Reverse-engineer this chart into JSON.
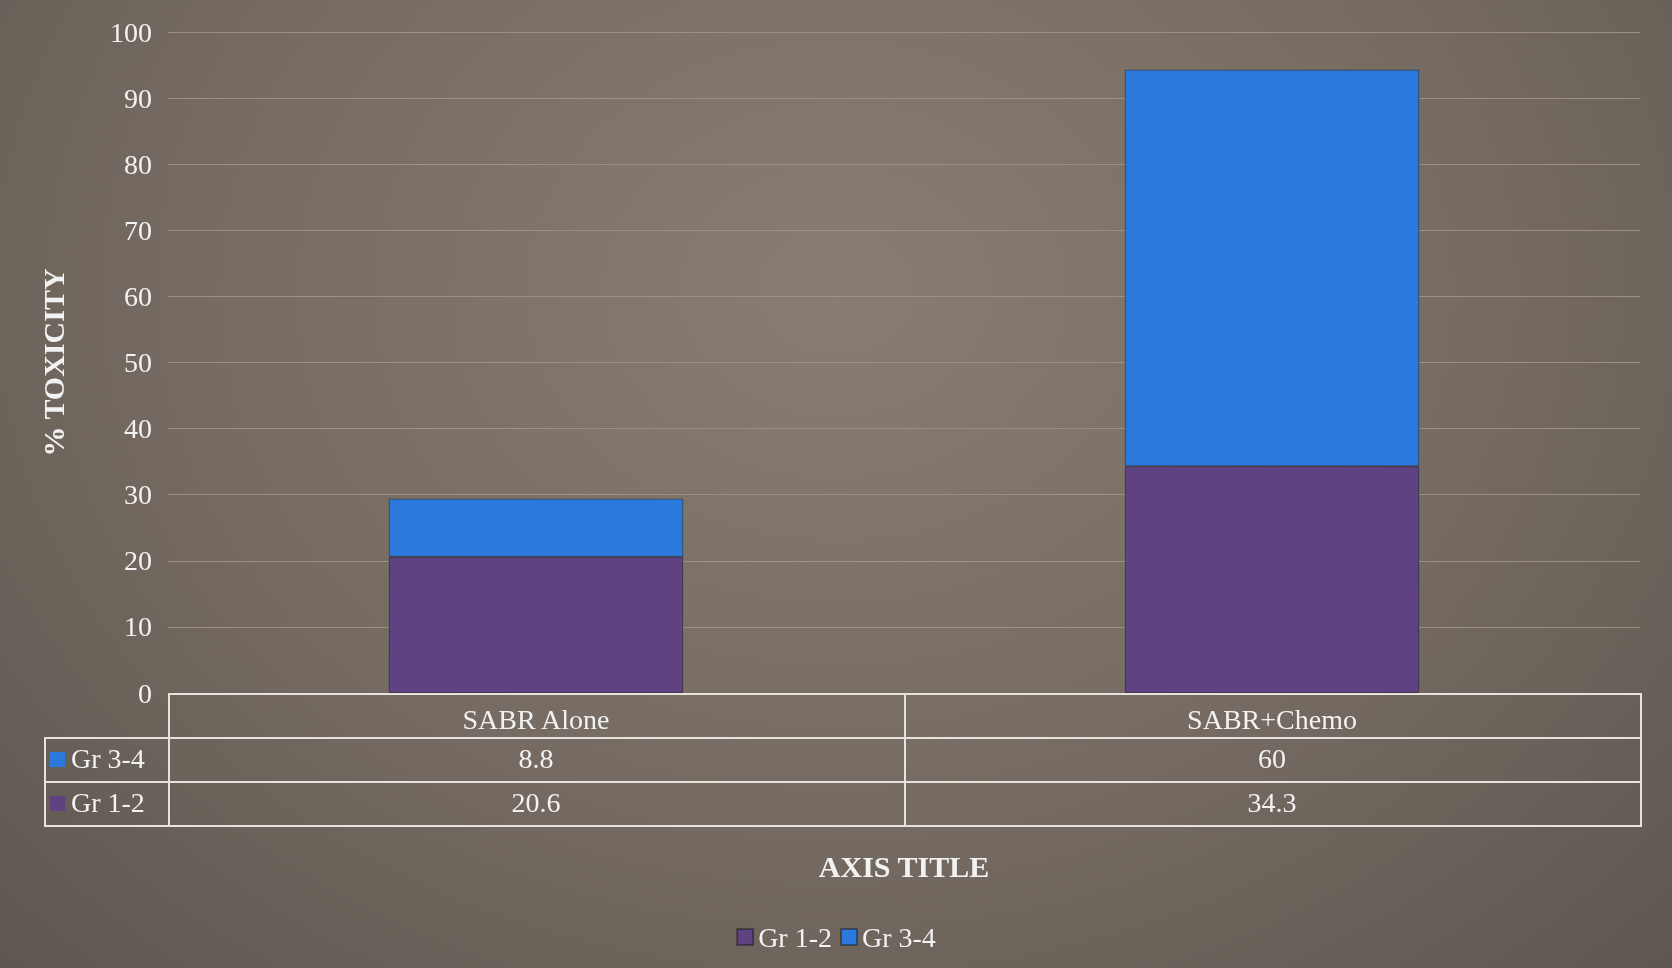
{
  "chart_data": {
    "type": "bar",
    "stacked": true,
    "xlabel": "AXIS TITLE",
    "ylabel": "% TOXICITY",
    "categories": [
      "SABR Alone",
      "SABR+Chemo"
    ],
    "series": [
      {
        "name": "Gr 1-2",
        "color": "#5e4282",
        "values": [
          20.6,
          34.3
        ]
      },
      {
        "name": "Gr 3-4",
        "color": "#2b79dc",
        "values": [
          8.8,
          60
        ]
      }
    ],
    "ylim": [
      0,
      100
    ],
    "yticks": [
      0,
      10,
      20,
      30,
      40,
      50,
      60,
      70,
      80,
      90,
      100
    ],
    "grid": "y",
    "legend": "bottom",
    "data_labels": true
  }
}
